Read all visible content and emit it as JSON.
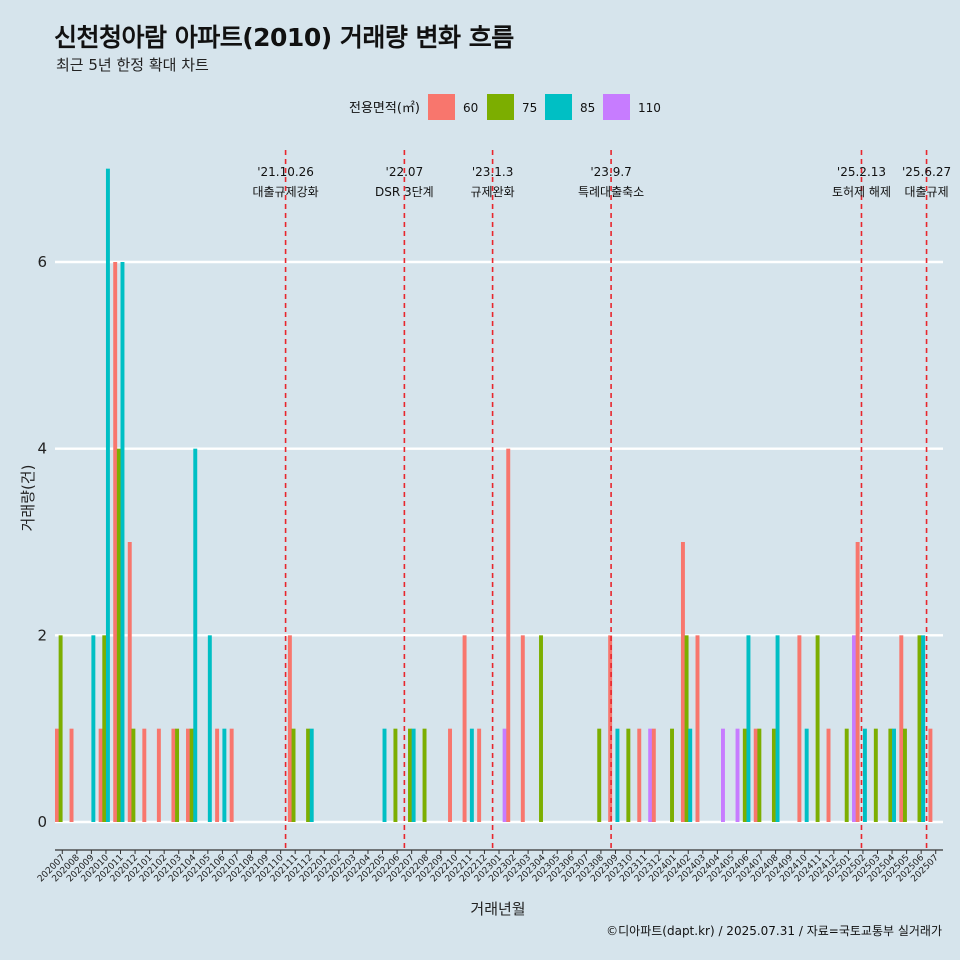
{
  "title": "신천청아람 아파트(2010) 거래량 변화 흐름",
  "subtitle": "최근 5년 한정 확대 차트",
  "caption": "©디아파트(dapt.kr) / 2025.07.31 / 자료=국토교통부 실거래가",
  "colors": {
    "background": "#d6e4ec",
    "s60": "#f8766d",
    "s75": "#7cae00",
    "s85": "#00bfc4",
    "s110": "#c77cff",
    "event_line": "#e8262d"
  },
  "chart_data": {
    "type": "bar",
    "xlabel": "거래년월",
    "ylabel": "거래량(건)",
    "ylim": [
      -0.3,
      7.2
    ],
    "yticks": [
      0,
      2,
      4,
      6
    ],
    "grid": true,
    "legend": {
      "title": "전용면적(㎡)",
      "position": "top"
    },
    "categories": [
      "202007",
      "202008",
      "202009",
      "202010",
      "202011",
      "202012",
      "202101",
      "202102",
      "202103",
      "202104",
      "202105",
      "202106",
      "202107",
      "202108",
      "202109",
      "202110",
      "202111",
      "202112",
      "202201",
      "202202",
      "202203",
      "202204",
      "202205",
      "202206",
      "202207",
      "202208",
      "202209",
      "202210",
      "202211",
      "202212",
      "202301",
      "202302",
      "202303",
      "202304",
      "202305",
      "202306",
      "202307",
      "202308",
      "202309",
      "202310",
      "202311",
      "202312",
      "202401",
      "202402",
      "202403",
      "202404",
      "202405",
      "202406",
      "202407",
      "202408",
      "202409",
      "202410",
      "202411",
      "202412",
      "202501",
      "202502",
      "202503",
      "202504",
      "202505",
      "202506",
      "202507"
    ],
    "series": [
      {
        "name": "60",
        "color": "#f8766d",
        "values": [
          1,
          1,
          0,
          1,
          6,
          3,
          1,
          1,
          1,
          1,
          0,
          1,
          1,
          0,
          0,
          0,
          2,
          0,
          0,
          0,
          0,
          0,
          0,
          0,
          0,
          0,
          0,
          1,
          2,
          1,
          0,
          4,
          2,
          0,
          0,
          0,
          0,
          0,
          2,
          0,
          1,
          1,
          0,
          3,
          2,
          0,
          0,
          0,
          1,
          0,
          0,
          2,
          0,
          1,
          0,
          3,
          0,
          0,
          2,
          0,
          1
        ]
      },
      {
        "name": "75",
        "color": "#7cae00",
        "values": [
          2,
          0,
          0,
          2,
          4,
          1,
          0,
          0,
          1,
          1,
          0,
          0,
          0,
          0,
          0,
          0,
          1,
          1,
          0,
          0,
          0,
          0,
          0,
          1,
          1,
          1,
          0,
          0,
          0,
          0,
          0,
          0,
          0,
          2,
          0,
          0,
          0,
          1,
          0,
          1,
          0,
          0,
          1,
          2,
          0,
          0,
          0,
          1,
          1,
          1,
          0,
          0,
          2,
          0,
          1,
          0,
          1,
          1,
          1,
          2,
          0
        ]
      },
      {
        "name": "85",
        "color": "#00bfc4",
        "values": [
          0,
          0,
          2,
          7,
          6,
          0,
          0,
          0,
          0,
          4,
          2,
          1,
          0,
          0,
          0,
          0,
          0,
          1,
          0,
          0,
          0,
          0,
          1,
          0,
          1,
          0,
          0,
          0,
          1,
          0,
          0,
          0,
          0,
          0,
          0,
          0,
          0,
          0,
          1,
          0,
          0,
          0,
          0,
          1,
          0,
          0,
          0,
          2,
          0,
          2,
          0,
          1,
          0,
          0,
          0,
          1,
          0,
          1,
          0,
          2,
          0
        ]
      },
      {
        "name": "110",
        "color": "#c77cff",
        "values": [
          0,
          0,
          0,
          0,
          0,
          0,
          0,
          0,
          0,
          0,
          0,
          0,
          0,
          0,
          0,
          0,
          0,
          0,
          0,
          0,
          0,
          0,
          0,
          0,
          0,
          0,
          0,
          0,
          0,
          0,
          1,
          0,
          0,
          0,
          0,
          0,
          0,
          0,
          0,
          0,
          1,
          0,
          0,
          0,
          0,
          1,
          1,
          0,
          0,
          0,
          0,
          0,
          0,
          0,
          2,
          0,
          0,
          0,
          0,
          0,
          0
        ]
      }
    ],
    "events": [
      {
        "date": "'21.10.26",
        "label": "대출규제강화",
        "month": "202110",
        "frac": 0.84
      },
      {
        "date": "'22.07",
        "label": "DSR 3단계",
        "month": "202207",
        "frac": 0.0
      },
      {
        "date": "'23.1.3",
        "label": "규제완화",
        "month": "202301",
        "frac": 0.06
      },
      {
        "date": "'23.9.7",
        "label": "특례대출축소",
        "month": "202309",
        "frac": 0.2
      },
      {
        "date": "'25.2.13",
        "label": "토허제 해제",
        "month": "202502",
        "frac": 0.4
      },
      {
        "date": "'25.6.27",
        "label": "대출규제",
        "month": "202506",
        "frac": 0.87
      }
    ]
  }
}
